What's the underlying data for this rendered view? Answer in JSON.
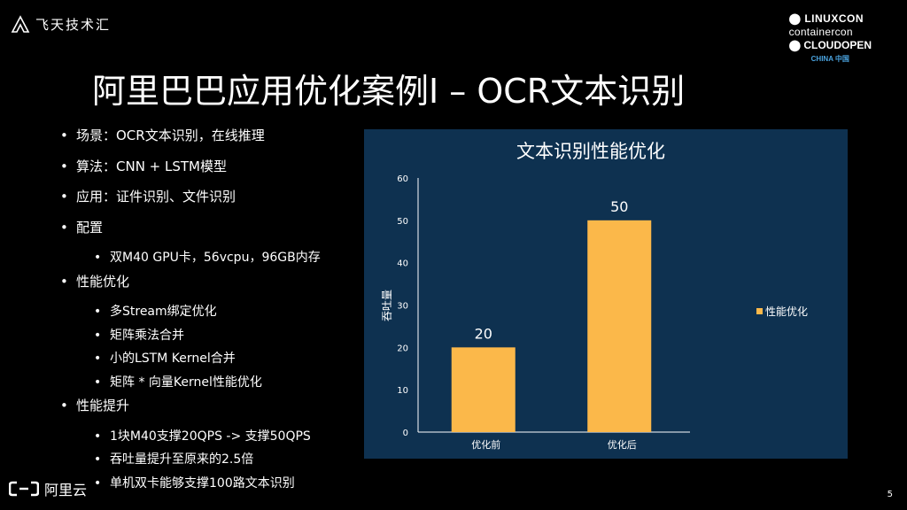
{
  "header": {
    "brand_left": "飞天技术汇",
    "conf_line1": "LINUXCON",
    "conf_line2": "containercon",
    "conf_line3": "CLOUDOPEN",
    "conf_line4": "CHINA 中国"
  },
  "slide": {
    "title": "阿里巴巴应用优化案例I – OCR文本识别",
    "page_number": "5",
    "footer_brand": "阿里云"
  },
  "bullets": [
    {
      "level": 1,
      "text": "场景：OCR文本识别，在线推理"
    },
    {
      "level": 1,
      "text": "算法：CNN + LSTM模型"
    },
    {
      "level": 1,
      "text": "应用：证件识别、文件识别"
    },
    {
      "level": 1,
      "text": "配置"
    },
    {
      "level": 2,
      "text": "双M40 GPU卡，56vcpu，96GB内存"
    },
    {
      "level": 1,
      "text": "性能优化"
    },
    {
      "level": 2,
      "text": "多Stream绑定优化"
    },
    {
      "level": 2,
      "text": "矩阵乘法合并"
    },
    {
      "level": 2,
      "text": "小的LSTM Kernel合并"
    },
    {
      "level": 2,
      "text": "矩阵 * 向量Kernel性能优化"
    },
    {
      "level": 1,
      "text": "性能提升"
    },
    {
      "level": 2,
      "text": "1块M40支撑20QPS -> 支撑50QPS"
    },
    {
      "level": 2,
      "text": "吞吐量提升至原来的2.5倍"
    },
    {
      "level": 2,
      "text": "单机双卡能够支撑100路文本识别"
    }
  ],
  "chart_data": {
    "type": "bar",
    "title": "文本识别性能优化",
    "categories": [
      "优化前",
      "优化后"
    ],
    "series": [
      {
        "name": "性能优化",
        "values": [
          20,
          50
        ]
      }
    ],
    "ylabel": "吞吐量",
    "ylim": [
      0,
      60
    ],
    "yticks": [
      0,
      10,
      20,
      30,
      40,
      50,
      60
    ],
    "legend": "right",
    "colors": {
      "bar": "#fbb84a",
      "background": "#0e3150",
      "text": "#ffffff"
    }
  }
}
